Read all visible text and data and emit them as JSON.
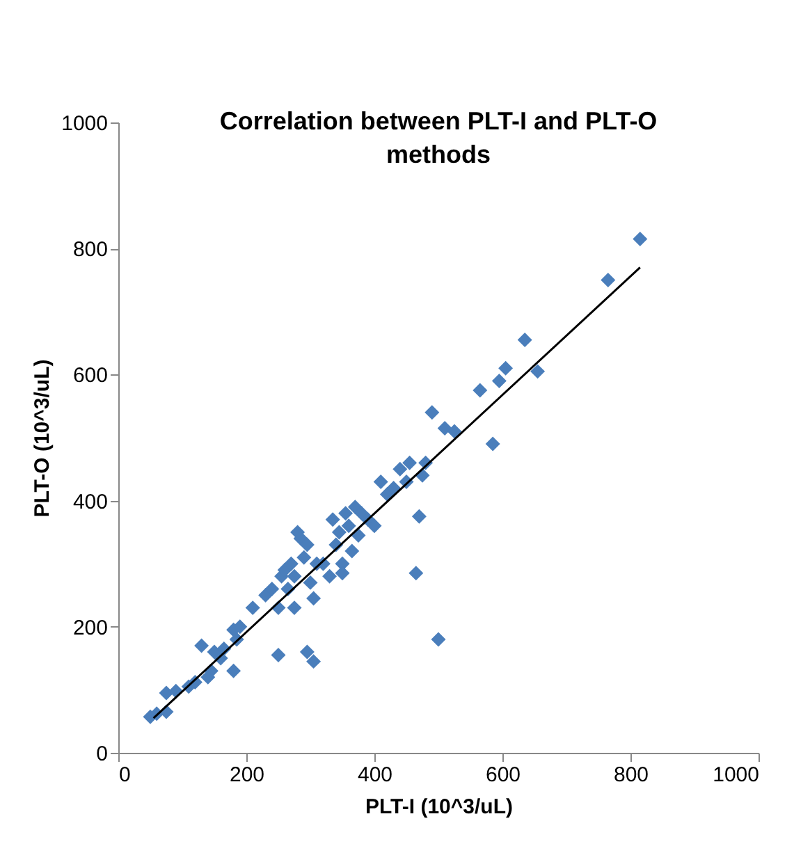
{
  "chart_data": {
    "type": "scatter",
    "title": "Correlation between PLT-I and PLT-O methods",
    "xlabel": "PLT-I (10^3/uL)",
    "ylabel": "PLT-O (10^3/uL)",
    "xlim": [
      0,
      1000
    ],
    "xticks": [
      0,
      200,
      400,
      600,
      800,
      1000
    ],
    "ylim": [
      0,
      1000
    ],
    "yticks": [
      0,
      200,
      400,
      600,
      800,
      1000
    ],
    "grid": false,
    "series": [
      {
        "marker": "diamond",
        "color": "#4a7ebb",
        "x": [
          50,
          60,
          75,
          75,
          90,
          110,
          120,
          130,
          140,
          145,
          150,
          160,
          165,
          180,
          180,
          185,
          190,
          210,
          230,
          240,
          250,
          250,
          255,
          260,
          265,
          270,
          275,
          275,
          280,
          285,
          290,
          295,
          295,
          300,
          305,
          305,
          310,
          320,
          330,
          335,
          340,
          345,
          350,
          350,
          355,
          360,
          365,
          370,
          375,
          380,
          390,
          400,
          410,
          420,
          430,
          440,
          450,
          455,
          465,
          470,
          475,
          480,
          490,
          500,
          510,
          525,
          565,
          585,
          595,
          605,
          635,
          655,
          765,
          815
        ],
        "values": [
          57,
          62,
          65,
          95,
          98,
          105,
          112,
          170,
          120,
          130,
          160,
          150,
          165,
          130,
          195,
          180,
          200,
          230,
          250,
          260,
          230,
          155,
          280,
          290,
          260,
          300,
          230,
          280,
          350,
          340,
          310,
          330,
          160,
          270,
          145,
          245,
          300,
          300,
          280,
          370,
          330,
          350,
          300,
          285,
          380,
          360,
          320,
          390,
          345,
          380,
          370,
          360,
          430,
          410,
          420,
          450,
          430,
          460,
          285,
          375,
          440,
          460,
          540,
          180,
          515,
          510,
          575,
          490,
          590,
          610,
          655,
          605,
          750,
          815
        ]
      },
      {
        "type": "line",
        "color": "#000000",
        "x": [
          55,
          815
        ],
        "values": [
          55,
          770
        ]
      }
    ]
  }
}
